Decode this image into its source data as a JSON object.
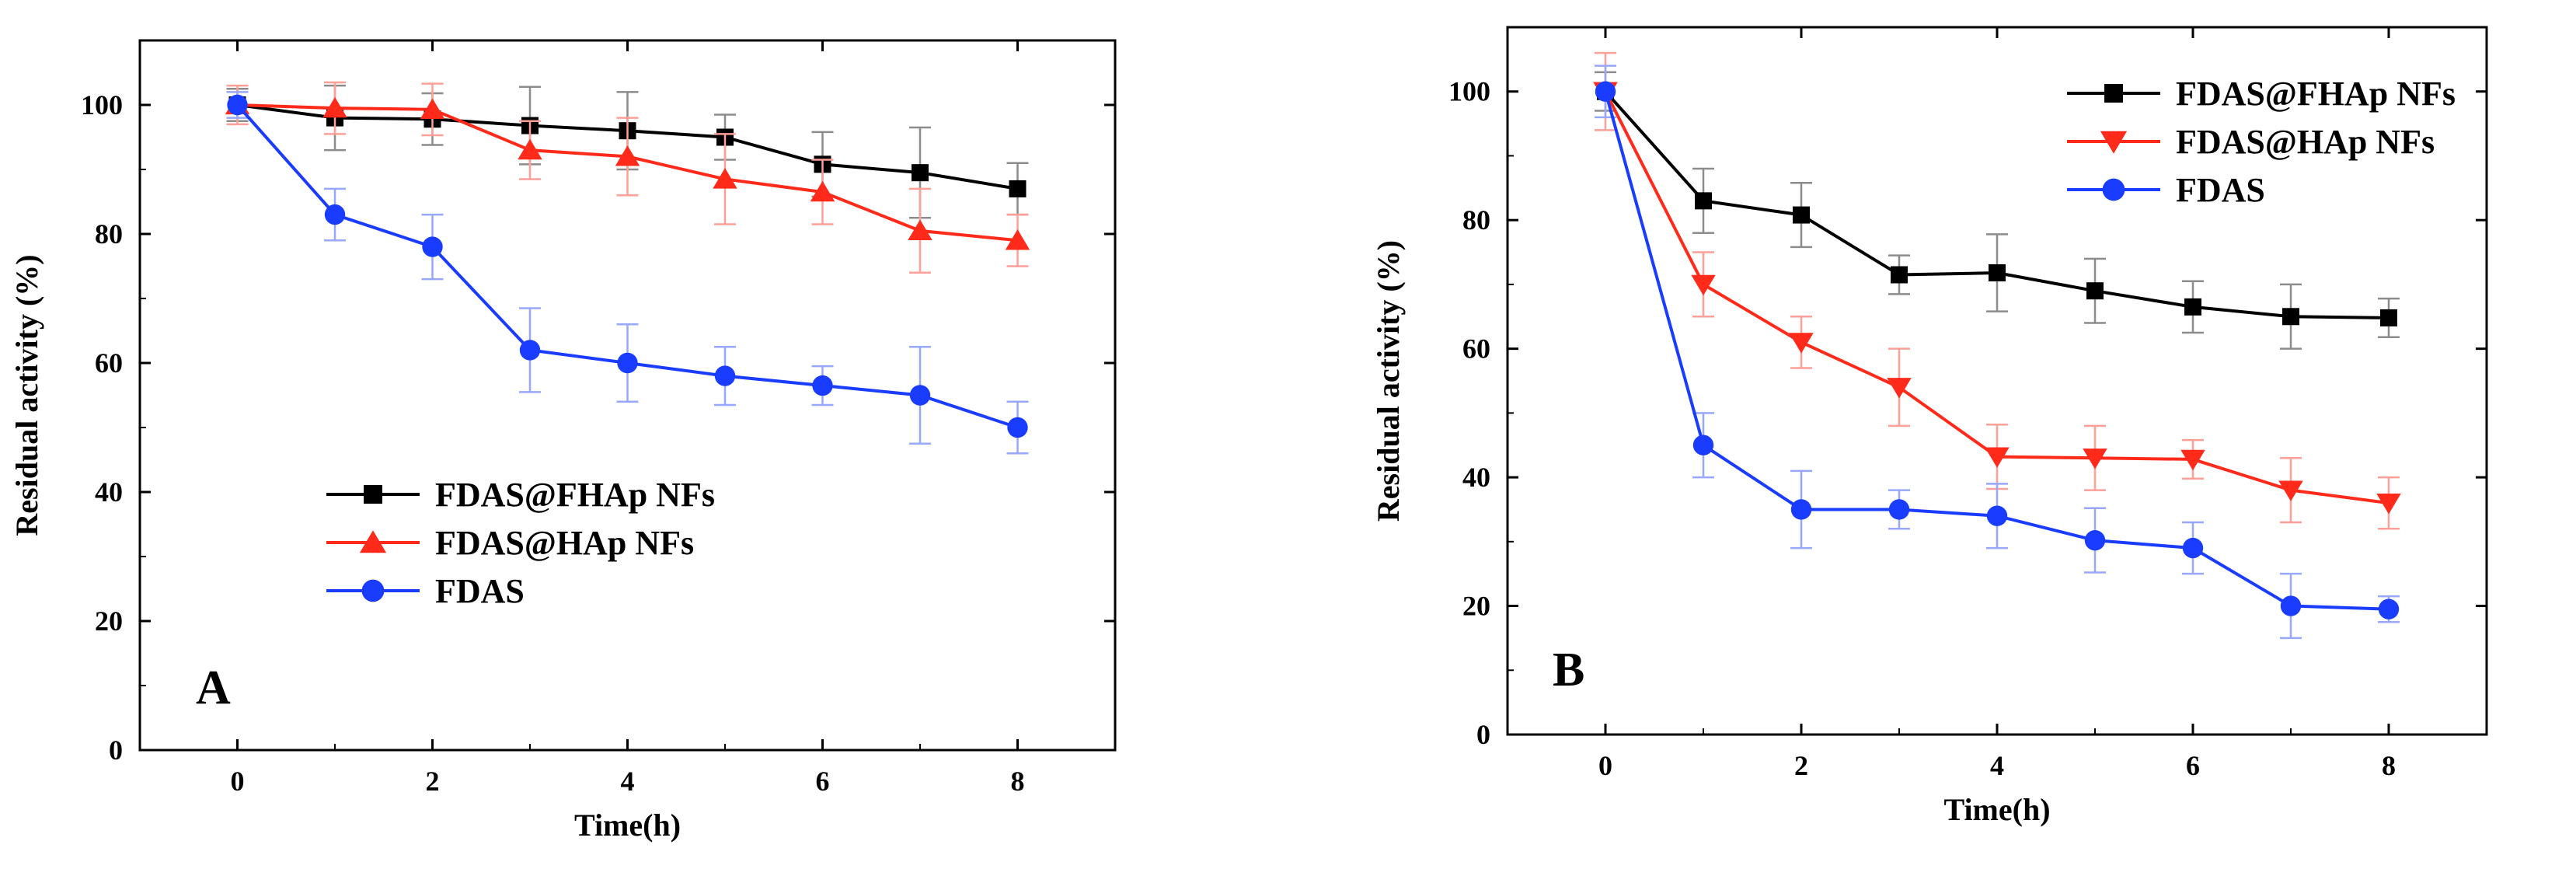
{
  "chart_data": [
    {
      "type": "line",
      "panel_label": "A",
      "xlabel": "Time(h)",
      "ylabel": "Residual activity (%)",
      "xlim": [
        -1,
        9
      ],
      "ylim": [
        0,
        110
      ],
      "xticks": [
        0,
        2,
        4,
        6,
        8
      ],
      "yticks": [
        0,
        20,
        40,
        60,
        80,
        100
      ],
      "legend_position": "lower-left",
      "x": [
        0,
        1,
        2,
        3,
        4,
        5,
        6,
        7,
        8
      ],
      "series": [
        {
          "name": "FDAS@FHAp NFs",
          "color": "#000000",
          "marker": "square",
          "values": [
            100,
            98,
            97.8,
            96.8,
            96,
            95,
            90.8,
            89.5,
            87
          ],
          "errors": [
            2.5,
            5,
            4,
            6,
            6,
            3.5,
            5,
            7,
            4
          ]
        },
        {
          "name": "FDAS@HAp NFs",
          "color": "#ff2a1a",
          "marker": "triangle-up",
          "values": [
            100,
            99.5,
            99.3,
            93,
            92,
            88.5,
            86.5,
            80.5,
            79
          ],
          "errors": [
            3,
            4,
            4,
            4.5,
            6,
            7,
            5,
            6.5,
            4
          ]
        },
        {
          "name": "FDAS",
          "color": "#1a3cff",
          "marker": "circle",
          "values": [
            100,
            83,
            78,
            62,
            60,
            58,
            56.5,
            55,
            50
          ],
          "errors": [
            2,
            4,
            5,
            6.5,
            6,
            4.5,
            3,
            7.5,
            4
          ]
        }
      ]
    },
    {
      "type": "line",
      "panel_label": "B",
      "xlabel": "Time(h)",
      "ylabel": "Residual activity (%)",
      "xlim": [
        -1,
        9
      ],
      "ylim": [
        0,
        110
      ],
      "xticks": [
        0,
        2,
        4,
        6,
        8
      ],
      "yticks": [
        0,
        20,
        40,
        60,
        80,
        100
      ],
      "legend_position": "top-right",
      "x": [
        0,
        1,
        2,
        3,
        4,
        5,
        6,
        7,
        8
      ],
      "series": [
        {
          "name": "FDAS@FHAp NFs",
          "color": "#000000",
          "marker": "square",
          "values": [
            100,
            83,
            80.8,
            71.5,
            71.8,
            69,
            66.5,
            65,
            64.8
          ],
          "errors": [
            3,
            5,
            5,
            3,
            6,
            5,
            4,
            5,
            3
          ]
        },
        {
          "name": "FDAS@HAp NFs",
          "color": "#ff2a1a",
          "marker": "triangle-down",
          "values": [
            100,
            70,
            61,
            54,
            43.2,
            43,
            42.8,
            38,
            36
          ],
          "errors": [
            6,
            5,
            4,
            6,
            5,
            5,
            3,
            5,
            4
          ]
        },
        {
          "name": "FDAS",
          "color": "#1a3cff",
          "marker": "circle",
          "values": [
            100,
            45,
            35,
            35,
            34,
            30.2,
            29,
            20,
            19.5
          ],
          "errors": [
            4,
            5,
            6,
            3,
            5,
            5,
            4,
            5,
            2
          ]
        }
      ]
    }
  ]
}
